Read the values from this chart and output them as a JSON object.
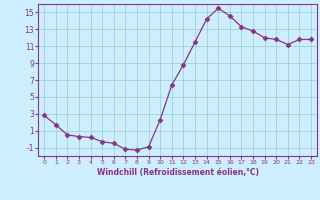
{
  "x": [
    0,
    1,
    2,
    3,
    4,
    5,
    6,
    7,
    8,
    9,
    10,
    11,
    12,
    13,
    14,
    15,
    16,
    17,
    18,
    19,
    20,
    21,
    22,
    23
  ],
  "y": [
    2.8,
    1.7,
    0.5,
    0.3,
    0.2,
    -0.3,
    -0.5,
    -1.2,
    -1.3,
    -0.9,
    2.3,
    6.4,
    8.8,
    11.5,
    14.2,
    15.5,
    14.6,
    13.3,
    12.8,
    12.0,
    11.8,
    11.2,
    11.8,
    11.8
  ],
  "line_color": "#883388",
  "marker": "D",
  "marker_size": 2.5,
  "bg_color": "#cceeff",
  "grid_color": "#99cccc",
  "xlabel": "Windchill (Refroidissement éolien,°C)",
  "xlabel_color": "#883388",
  "tick_color": "#883388",
  "ylim": [
    -2,
    16
  ],
  "xlim": [
    -0.5,
    23.5
  ],
  "yticks": [
    -1,
    1,
    3,
    5,
    7,
    9,
    11,
    13,
    15
  ],
  "xticks": [
    0,
    1,
    2,
    3,
    4,
    5,
    6,
    7,
    8,
    9,
    10,
    11,
    12,
    13,
    14,
    15,
    16,
    17,
    18,
    19,
    20,
    21,
    22,
    23
  ],
  "xtick_labels": [
    "0",
    "1",
    "2",
    "3",
    "4",
    "5",
    "6",
    "7",
    "8",
    "9",
    "10",
    "11",
    "12",
    "13",
    "14",
    "15",
    "16",
    "17",
    "18",
    "19",
    "20",
    "21",
    "22",
    "23"
  ]
}
